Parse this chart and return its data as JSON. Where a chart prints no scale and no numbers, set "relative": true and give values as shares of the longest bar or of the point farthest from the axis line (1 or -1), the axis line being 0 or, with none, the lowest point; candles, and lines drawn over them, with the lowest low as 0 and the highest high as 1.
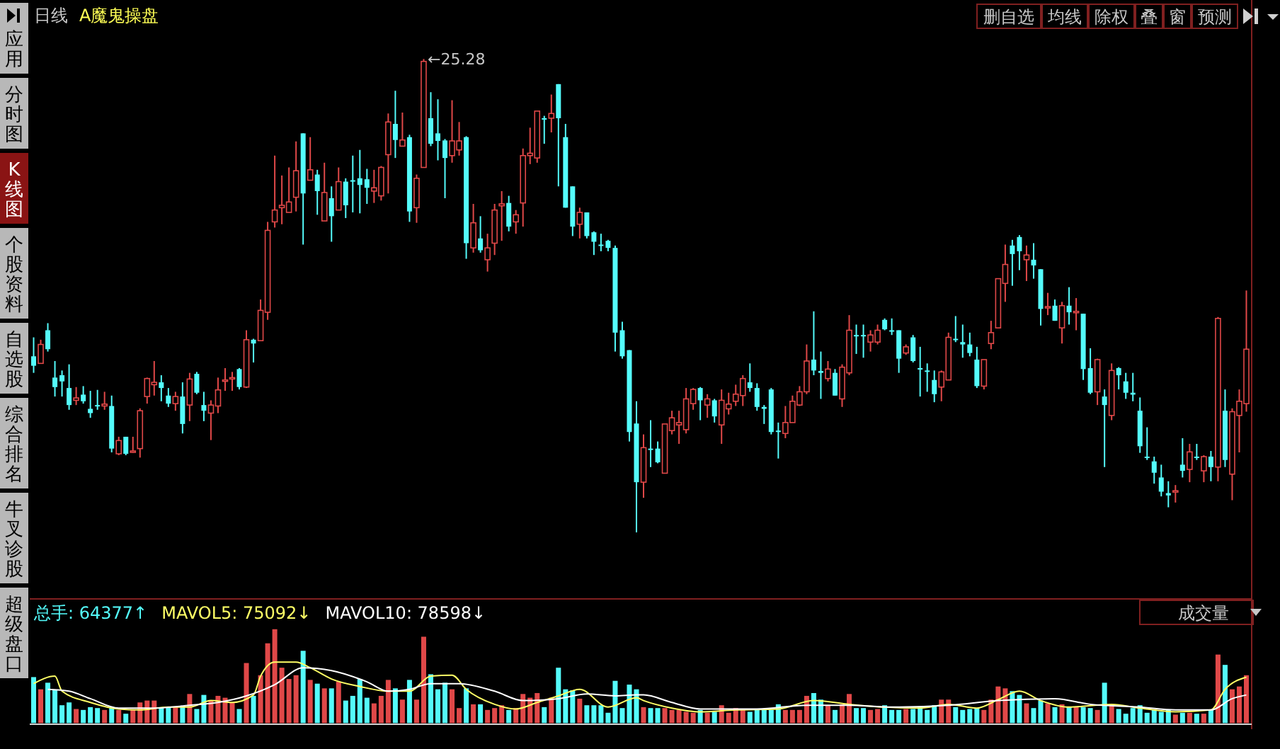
{
  "chart_data": [
    {
      "type": "candlestick",
      "title": "日线",
      "subtitle": "A魔鬼操盘",
      "relative": true,
      "categories": [
        null,
        null,
        null,
        null,
        null,
        null,
        null,
        null,
        null,
        null,
        null,
        null,
        null,
        null,
        null,
        null,
        null,
        null,
        null,
        null,
        null,
        null,
        null,
        null,
        null,
        null,
        null,
        null,
        null,
        null,
        null,
        null,
        null,
        null,
        null,
        null,
        null,
        null,
        null,
        null,
        null,
        null,
        null,
        null,
        null,
        null,
        null,
        null,
        null,
        null,
        null,
        null,
        null,
        null,
        null,
        null,
        null,
        null,
        null,
        null,
        null,
        null,
        null,
        null,
        null,
        null,
        null,
        null,
        null,
        null,
        null,
        null,
        null,
        null,
        null,
        null,
        null,
        null,
        null,
        null,
        null,
        null,
        null,
        null,
        null,
        null,
        null,
        null,
        null,
        null,
        null,
        null,
        null,
        null,
        null,
        null,
        null,
        null,
        null,
        null,
        null,
        null,
        null,
        null,
        null,
        null,
        null,
        null,
        null,
        null,
        null,
        null,
        null,
        null,
        null,
        null,
        null,
        null,
        null,
        null,
        null,
        null,
        null,
        null,
        null,
        null,
        null,
        null,
        null,
        null,
        null,
        null,
        null,
        null,
        null,
        null,
        null,
        null,
        null,
        null,
        null,
        null,
        null,
        null,
        null,
        null,
        null,
        null,
        null,
        null,
        null,
        null,
        null,
        null,
        null,
        null,
        null,
        null,
        null,
        null,
        null,
        null,
        null,
        null,
        null,
        null,
        null,
        null,
        null,
        null,
        null,
        null
      ],
      "colors": [
        "#54fcfc",
        "#e04848",
        "#54fcfc",
        "#54fcfc",
        "#54fcfc",
        "#54fcfc",
        "#e04848",
        "#54fcfc",
        "#54fcfc",
        "#54fcfc",
        "#e04848",
        "#54fcfc",
        "#e04848",
        "#54fcfc",
        "#e04848",
        "#e04848",
        "#e04848",
        "#e04848",
        "#54fcfc",
        "#54fcfc",
        "#e04848",
        "#54fcfc",
        "#e04848",
        "#54fcfc",
        "#54fcfc",
        "#e04848",
        "#e04848",
        "#e04848",
        "#e04848",
        "#54fcfc",
        "#e04848",
        "#54fcfc",
        "#e04848",
        "#e04848",
        "#e04848",
        "#e04848",
        "#e04848",
        "#e04848",
        "#54fcfc",
        "#e04848",
        "#54fcfc",
        "#e04848",
        "#54fcfc",
        "#e04848",
        "#54fcfc",
        "#54fcfc",
        "#54fcfc",
        "#54fcfc",
        "#e04848",
        "#e04848",
        "#e04848",
        "#54fcfc",
        "#e04848",
        "#54fcfc",
        "#e04848",
        "#e04848",
        "#54fcfc",
        "#54fcfc",
        "#54fcfc",
        "#e04848",
        "#e04848",
        "#54fcfc",
        "#e04848",
        "#54fcfc",
        "#e04848",
        "#e04848",
        "#e04848",
        "#54fcfc",
        "#e04848",
        "#e04848",
        "#e04848",
        "#e04848",
        "#54fcfc",
        "#e04848",
        "#54fcfc",
        "#54fcfc",
        "#54fcfc",
        "#e04848",
        "#54fcfc",
        "#54fcfc",
        "#54fcfc",
        "#54fcfc",
        "#54fcfc",
        "#54fcfc",
        "#54fcfc",
        "#54fcfc",
        "#e04848",
        "#54fcfc",
        "#54fcfc",
        "#e04848",
        "#e04848",
        "#e04848",
        "#e04848",
        "#e04848",
        "#54fcfc",
        "#e04848",
        "#54fcfc",
        "#e04848",
        "#e04848",
        "#e04848",
        "#e04848",
        "#54fcfc",
        "#54fcfc",
        "#54fcfc",
        "#54fcfc",
        "#54fcfc",
        "#e04848",
        "#e04848",
        "#e04848",
        "#e04848",
        "#54fcfc",
        "#54fcfc",
        "#e04848",
        "#54fcfc",
        "#e04848",
        "#e04848",
        "#54fcfc",
        "#54fcfc",
        "#e04848",
        "#e04848",
        "#54fcfc",
        "#54fcfc",
        "#54fcfc",
        "#e04848",
        "#54fcfc",
        "#54fcfc",
        "#54fcfc",
        "#54fcfc",
        "#e04848",
        "#e04848",
        "#54fcfc",
        "#54fcfc",
        "#54fcfc",
        "#54fcfc",
        "#e04848",
        "#e04848",
        "#e04848",
        "#e04848",
        "#54fcfc",
        "#54fcfc",
        "#e04848",
        "#54fcfc",
        "#54fcfc",
        "#e04848",
        "#54fcfc",
        "#e04848",
        "#54fcfc",
        "#e04848",
        "#54fcfc",
        "#54fcfc",
        "#e04848",
        "#54fcfc",
        "#e04848",
        "#54fcfc",
        "#54fcfc",
        "#54fcfc",
        "#54fcfc",
        "#54fcfc",
        "#54fcfc",
        "#54fcfc",
        "#54fcfc",
        "#e04848",
        "#54fcfc",
        "#e04848",
        "#54fcfc",
        "#e04848",
        "#54fcfc",
        "#e04848",
        "#54fcfc",
        "#e04848",
        "#e04848",
        "#e04848"
      ],
      "ohlc": [
        [
          0.372,
          0.412,
          0.337,
          0.352
        ],
        [
          0.357,
          0.407,
          0.357,
          0.397
        ],
        [
          0.427,
          0.442,
          0.382,
          0.387
        ],
        [
          0.327,
          0.362,
          0.287,
          0.307
        ],
        [
          0.332,
          0.342,
          0.287,
          0.319
        ],
        [
          0.305,
          0.355,
          0.259,
          0.269
        ],
        [
          0.279,
          0.307,
          0.269,
          0.284
        ],
        [
          0.291,
          0.309,
          0.272,
          0.277
        ],
        [
          0.261,
          0.299,
          0.242,
          0.252
        ],
        [
          0.269,
          0.301,
          0.259,
          0.267
        ],
        [
          0.267,
          0.297,
          0.259,
          0.271
        ],
        [
          0.267,
          0.289,
          0.169,
          0.177
        ],
        [
          0.166,
          0.202,
          0.163,
          0.194
        ],
        [
          0.202,
          0.202,
          0.163,
          0.166
        ],
        [
          0.169,
          0.202,
          0.168,
          0.172
        ],
        [
          0.177,
          0.262,
          0.158,
          0.257
        ],
        [
          0.287,
          0.327,
          0.272,
          0.325
        ],
        [
          0.312,
          0.362,
          0.289,
          0.317
        ],
        [
          0.317,
          0.332,
          0.277,
          0.305
        ],
        [
          0.289,
          0.305,
          0.265,
          0.272
        ],
        [
          0.272,
          0.297,
          0.257,
          0.287
        ],
        [
          0.287,
          0.317,
          0.209,
          0.229
        ],
        [
          0.269,
          0.337,
          0.235,
          0.324
        ],
        [
          0.335,
          0.339,
          0.292,
          0.295
        ],
        [
          0.269,
          0.297,
          0.235,
          0.257
        ],
        [
          0.252,
          0.279,
          0.195,
          0.269
        ],
        [
          0.267,
          0.327,
          0.252,
          0.301
        ],
        [
          0.319,
          0.347,
          0.299,
          0.322
        ],
        [
          0.324,
          0.339,
          0.299,
          0.327
        ],
        [
          0.345,
          0.347,
          0.302,
          0.307
        ],
        [
          0.307,
          0.427,
          0.305,
          0.407
        ],
        [
          0.407,
          0.409,
          0.359,
          0.399
        ],
        [
          0.405,
          0.492,
          0.405,
          0.469
        ],
        [
          0.465,
          0.656,
          0.449,
          0.638
        ],
        [
          0.656,
          0.796,
          0.644,
          0.681
        ],
        [
          0.686,
          0.754,
          0.651,
          0.691
        ],
        [
          0.676,
          0.771,
          0.676,
          0.698
        ],
        [
          0.708,
          0.826,
          0.678,
          0.764
        ],
        [
          0.843,
          0.843,
          0.608,
          0.716
        ],
        [
          0.744,
          0.835,
          0.744,
          0.766
        ],
        [
          0.756,
          0.766,
          0.671,
          0.721
        ],
        [
          0.658,
          0.781,
          0.658,
          0.718
        ],
        [
          0.706,
          0.731,
          0.614,
          0.668
        ],
        [
          0.681,
          0.771,
          0.681,
          0.741
        ],
        [
          0.741,
          0.748,
          0.664,
          0.691
        ],
        [
          0.744,
          0.796,
          0.676,
          0.742
        ],
        [
          0.748,
          0.808,
          0.674,
          0.734
        ],
        [
          0.746,
          0.768,
          0.694,
          0.728
        ],
        [
          0.721,
          0.766,
          0.696,
          0.728
        ],
        [
          0.711,
          0.774,
          0.701,
          0.771
        ],
        [
          0.798,
          0.885,
          0.716,
          0.867
        ],
        [
          0.863,
          0.933,
          0.791,
          0.829
        ],
        [
          0.816,
          0.887,
          0.816,
          0.829
        ],
        [
          0.835,
          0.84,
          0.656,
          0.678
        ],
        [
          0.686,
          0.756,
          0.654,
          0.748
        ],
        [
          0.771,
          1,
          0.771,
          0.995
        ],
        [
          0.875,
          0.93,
          0.816,
          0.821
        ],
        [
          0.843,
          0.915,
          0.786,
          0.827
        ],
        [
          0.828,
          0.831,
          0.706,
          0.791
        ],
        [
          0.796,
          0.913,
          0.781,
          0.827
        ],
        [
          0.808,
          0.867,
          0.796,
          0.827
        ],
        [
          0.835,
          0.837,
          0.578,
          0.611
        ],
        [
          0.601,
          0.694,
          0.591,
          0.654
        ],
        [
          0.621,
          0.668,
          0.591,
          0.596
        ],
        [
          0.576,
          0.631,
          0.551,
          0.601
        ],
        [
          0.611,
          0.694,
          0.586,
          0.681
        ],
        [
          0.69,
          0.721,
          0.616,
          0.694
        ],
        [
          0.696,
          0.711,
          0.636,
          0.646
        ],
        [
          0.656,
          0.681,
          0.631,
          0.671
        ],
        [
          0.696,
          0.811,
          0.646,
          0.796
        ],
        [
          0.796,
          0.855,
          0.778,
          0.801
        ],
        [
          0.791,
          0.89,
          0.781,
          0.89
        ],
        [
          0.875,
          0.88,
          0.821,
          0.873
        ],
        [
          0.875,
          0.925,
          0.845,
          0.885
        ],
        [
          0.947,
          0.947,
          0.731,
          0.875
        ],
        [
          0.835,
          0.863,
          0.686,
          0.686
        ],
        [
          0.731,
          0.731,
          0.626,
          0.646
        ],
        [
          0.651,
          0.686,
          0.621,
          0.676
        ],
        [
          0.676,
          0.676,
          0.621,
          0.626
        ],
        [
          0.634,
          0.636,
          0.586,
          0.614
        ],
        [
          0.608,
          0.631,
          0.594,
          0.606
        ],
        [
          0.616,
          0.618,
          0.594,
          0.601
        ],
        [
          0.601,
          0.606,
          0.382,
          0.422
        ],
        [
          0.427,
          0.445,
          0.367,
          0.372
        ],
        [
          0.385,
          0.385,
          0.192,
          0.212
        ],
        [
          0.23,
          0.277,
          0,
          0.106
        ],
        [
          0.106,
          0.207,
          0.073,
          0.179
        ],
        [
          0.177,
          0.237,
          0.138,
          0.175
        ],
        [
          0.177,
          0.192,
          0.146,
          0.148
        ],
        [
          0.125,
          0.229,
          0.125,
          0.229
        ],
        [
          0.215,
          0.257,
          0.207,
          0.242
        ],
        [
          0.227,
          0.257,
          0.187,
          0.232
        ],
        [
          0.217,
          0.305,
          0.209,
          0.282
        ],
        [
          0.272,
          0.305,
          0.259,
          0.302
        ],
        [
          0.305,
          0.307,
          0.237,
          0.279
        ],
        [
          0.269,
          0.292,
          0.242,
          0.282
        ],
        [
          0.279,
          0.282,
          0.232,
          0.245
        ],
        [
          0.227,
          0.302,
          0.187,
          0.279
        ],
        [
          0.261,
          0.295,
          0.249,
          0.271
        ],
        [
          0.277,
          0.312,
          0.267,
          0.292
        ],
        [
          0.289,
          0.332,
          0.267,
          0.325
        ],
        [
          0.317,
          0.357,
          0.297,
          0.305
        ],
        [
          0.305,
          0.315,
          0.257,
          0.265
        ],
        [
          0.265,
          0.269,
          0.229,
          0.261
        ],
        [
          0.302,
          0.305,
          0.207,
          0.212
        ],
        [
          0.215,
          0.232,
          0.156,
          0.212
        ],
        [
          0.209,
          0.267,
          0.199,
          0.232
        ],
        [
          0.232,
          0.289,
          0.232,
          0.277
        ],
        [
          0.269,
          0.309,
          0.267,
          0.297
        ],
        [
          0.297,
          0.397,
          0.292,
          0.362
        ],
        [
          0.365,
          0.467,
          0.332,
          0.342
        ],
        [
          0.341,
          0.382,
          0.282,
          0.337
        ],
        [
          0.325,
          0.362,
          0.319,
          0.345
        ],
        [
          0.337,
          0.345,
          0.289,
          0.289
        ],
        [
          0.282,
          0.355,
          0.265,
          0.349
        ],
        [
          0.337,
          0.459,
          0.332,
          0.427
        ],
        [
          0.417,
          0.439,
          0.377,
          0.415
        ],
        [
          0.417,
          0.439,
          0.369,
          0.415
        ],
        [
          0.402,
          0.427,
          0.382,
          0.417
        ],
        [
          0.402,
          0.439,
          0.397,
          0.427
        ],
        [
          0.449,
          0.452,
          0.427,
          0.429
        ],
        [
          0.427,
          0.452,
          0.417,
          0.424
        ],
        [
          0.427,
          0.427,
          0.337,
          0.367
        ],
        [
          0.379,
          0.397,
          0.375,
          0.392
        ],
        [
          0.412,
          0.417,
          0.359,
          0.362
        ],
        [
          0.347,
          0.392,
          0.287,
          0.344
        ],
        [
          0.342,
          0.357,
          0.297,
          0.339
        ],
        [
          0.322,
          0.342,
          0.275,
          0.292
        ],
        [
          0.307,
          0.342,
          0.277,
          0.339
        ],
        [
          0.322,
          0.422,
          0.322,
          0.412
        ],
        [
          0.409,
          0.457,
          0.402,
          0.407
        ],
        [
          0.402,
          0.439,
          0.369,
          0.397
        ],
        [
          0.397,
          0.422,
          0.372,
          0.379
        ],
        [
          0.365,
          0.392,
          0.305,
          0.309
        ],
        [
          0.309,
          0.365,
          0.302,
          0.365
        ],
        [
          0.399,
          0.447,
          0.387,
          0.422
        ],
        [
          0.432,
          0.536,
          0.432,
          0.536
        ],
        [
          0.526,
          0.608,
          0.487,
          0.566
        ],
        [
          0.606,
          0.618,
          0.521,
          0.588
        ],
        [
          0.624,
          0.628,
          0.554,
          0.594
        ],
        [
          0.576,
          0.606,
          0.531,
          0.586
        ],
        [
          0.576,
          0.611,
          0.536,
          0.564
        ],
        [
          0.556,
          0.556,
          0.437,
          0.472
        ],
        [
          0.475,
          0.506,
          0.459,
          0.477
        ],
        [
          0.479,
          0.492,
          0.447,
          0.447
        ],
        [
          0.432,
          0.487,
          0.399,
          0.479
        ],
        [
          0.479,
          0.518,
          0.439,
          0.465
        ],
        [
          0.465,
          0.495,
          0.427,
          0.467
        ],
        [
          0.462,
          0.462,
          0.322,
          0.345
        ],
        [
          0.347,
          0.389,
          0.292,
          0.295
        ],
        [
          0.297,
          0.367,
          0.269,
          0.365
        ],
        [
          0.287,
          0.302,
          0.138,
          0.269
        ],
        [
          0.247,
          0.357,
          0.237,
          0.342
        ],
        [
          0.347,
          0.349,
          0.302,
          0.332
        ],
        [
          0.319,
          0.337,
          0.282,
          0.295
        ],
        [
          0.295,
          0.337,
          0.277,
          0.291
        ],
        [
          0.257,
          0.285,
          0.168,
          0.182
        ],
        [
          0.16,
          0.222,
          0.153,
          0.158
        ],
        [
          0.15,
          0.16,
          0.103,
          0.126
        ],
        [
          0.116,
          0.143,
          0.076,
          0.086
        ],
        [
          0.083,
          0.108,
          0.053,
          0.078
        ],
        [
          0.086,
          0.1,
          0.063,
          0.088
        ],
        [
          0.143,
          0.199,
          0.116,
          0.13
        ],
        [
          0.133,
          0.187,
          0.106,
          0.17
        ],
        [
          0.16,
          0.187,
          0.153,
          0.158
        ],
        [
          0.13,
          0.163,
          0.106,
          0.16
        ],
        [
          0.16,
          0.172,
          0.108,
          0.138
        ],
        [
          0.138,
          0.455,
          0.108,
          0.452
        ],
        [
          0.257,
          0.302,
          0.138,
          0.153
        ],
        [
          0.123,
          0.262,
          0.068,
          0.255
        ],
        [
          0.247,
          0.302,
          0.169,
          0.277
        ],
        [
          0.272,
          0.511,
          0.255,
          0.387
        ]
      ],
      "annotations": [
        "←25.28"
      ]
    },
    {
      "type": "bar",
      "relative": true,
      "legend": "top left",
      "categories": [
        null,
        null,
        null,
        null,
        null,
        null,
        null,
        null,
        null,
        null,
        null,
        null,
        null,
        null,
        null,
        null,
        null,
        null,
        null,
        null,
        null,
        null,
        null,
        null,
        null,
        null,
        null,
        null,
        null,
        null,
        null,
        null,
        null,
        null,
        null,
        null,
        null,
        null,
        null,
        null,
        null,
        null,
        null,
        null,
        null,
        null,
        null,
        null,
        null,
        null,
        null,
        null,
        null,
        null,
        null,
        null,
        null,
        null,
        null,
        null,
        null,
        null,
        null,
        null,
        null,
        null,
        null,
        null,
        null,
        null,
        null,
        null,
        null,
        null,
        null,
        null,
        null,
        null,
        null,
        null,
        null,
        null,
        null,
        null,
        null,
        null,
        null,
        null,
        null,
        null,
        null,
        null,
        null,
        null,
        null,
        null,
        null,
        null,
        null,
        null,
        null,
        null,
        null,
        null,
        null,
        null,
        null,
        null,
        null,
        null,
        null,
        null,
        null,
        null,
        null,
        null,
        null,
        null,
        null,
        null,
        null,
        null,
        null,
        null,
        null,
        null,
        null,
        null,
        null,
        null,
        null,
        null,
        null,
        null,
        null,
        null,
        null,
        null,
        null,
        null,
        null,
        null,
        null,
        null,
        null,
        null,
        null,
        null,
        null,
        null,
        null,
        null,
        null,
        null,
        null,
        null,
        null,
        null,
        null,
        null,
        null,
        null,
        null,
        null,
        null,
        null,
        null,
        null,
        null,
        null,
        null,
        null
      ],
      "series": [
        {
          "name": "总手: 64377↑",
          "color": "#54fcfc",
          "colors": [
            "#54fcfc",
            "#e04848",
            "#54fcfc",
            "#54fcfc",
            "#54fcfc",
            "#54fcfc",
            "#e04848",
            "#54fcfc",
            "#54fcfc",
            "#54fcfc",
            "#e04848",
            "#54fcfc",
            "#e04848",
            "#54fcfc",
            "#e04848",
            "#e04848",
            "#e04848",
            "#e04848",
            "#54fcfc",
            "#54fcfc",
            "#e04848",
            "#54fcfc",
            "#e04848",
            "#54fcfc",
            "#54fcfc",
            "#e04848",
            "#e04848",
            "#e04848",
            "#e04848",
            "#54fcfc",
            "#e04848",
            "#54fcfc",
            "#e04848",
            "#e04848",
            "#e04848",
            "#e04848",
            "#e04848",
            "#e04848",
            "#54fcfc",
            "#e04848",
            "#54fcfc",
            "#e04848",
            "#54fcfc",
            "#e04848",
            "#54fcfc",
            "#54fcfc",
            "#54fcfc",
            "#54fcfc",
            "#e04848",
            "#e04848",
            "#e04848",
            "#54fcfc",
            "#e04848",
            "#54fcfc",
            "#e04848",
            "#e04848",
            "#54fcfc",
            "#54fcfc",
            "#54fcfc",
            "#e04848",
            "#e04848",
            "#54fcfc",
            "#e04848",
            "#54fcfc",
            "#e04848",
            "#e04848",
            "#e04848",
            "#54fcfc",
            "#e04848",
            "#e04848",
            "#e04848",
            "#e04848",
            "#54fcfc",
            "#e04848",
            "#54fcfc",
            "#54fcfc",
            "#54fcfc",
            "#e04848",
            "#54fcfc",
            "#54fcfc",
            "#54fcfc",
            "#54fcfc",
            "#54fcfc",
            "#54fcfc",
            "#54fcfc",
            "#54fcfc",
            "#e04848",
            "#54fcfc",
            "#54fcfc",
            "#e04848",
            "#e04848",
            "#e04848",
            "#e04848",
            "#e04848",
            "#54fcfc",
            "#e04848",
            "#54fcfc",
            "#e04848",
            "#e04848",
            "#e04848",
            "#e04848",
            "#54fcfc",
            "#54fcfc",
            "#54fcfc",
            "#54fcfc",
            "#54fcfc",
            "#e04848",
            "#e04848",
            "#e04848",
            "#e04848",
            "#54fcfc",
            "#54fcfc",
            "#e04848",
            "#54fcfc",
            "#e04848",
            "#e04848",
            "#54fcfc",
            "#54fcfc",
            "#e04848",
            "#e04848",
            "#54fcfc",
            "#54fcfc",
            "#54fcfc",
            "#e04848",
            "#54fcfc",
            "#54fcfc",
            "#54fcfc",
            "#54fcfc",
            "#e04848",
            "#e04848",
            "#54fcfc",
            "#54fcfc",
            "#54fcfc",
            "#54fcfc",
            "#e04848",
            "#e04848",
            "#e04848",
            "#e04848",
            "#54fcfc",
            "#54fcfc",
            "#e04848",
            "#54fcfc",
            "#54fcfc",
            "#e04848",
            "#54fcfc",
            "#e04848",
            "#54fcfc",
            "#e04848",
            "#54fcfc",
            "#54fcfc",
            "#e04848",
            "#54fcfc",
            "#e04848",
            "#54fcfc",
            "#54fcfc",
            "#54fcfc",
            "#54fcfc",
            "#54fcfc",
            "#54fcfc",
            "#54fcfc",
            "#54fcfc",
            "#e04848",
            "#54fcfc",
            "#e04848",
            "#54fcfc",
            "#e04848",
            "#54fcfc",
            "#e04848",
            "#54fcfc",
            "#e04848",
            "#e04848",
            "#e04848"
          ],
          "values": [
            0.49,
            0.36,
            0.43,
            0.35,
            0.19,
            0.22,
            0.15,
            0.14,
            0.17,
            0.16,
            0.14,
            0.16,
            0.14,
            0.1,
            0.14,
            0.22,
            0.24,
            0.24,
            0.17,
            0.17,
            0.17,
            0.17,
            0.31,
            0.15,
            0.3,
            0.24,
            0.29,
            0.27,
            0.22,
            0.15,
            0.64,
            0.29,
            0.51,
            0.85,
            1,
            0.59,
            0.47,
            0.51,
            0.77,
            0.46,
            0.42,
            0.37,
            0.37,
            0.44,
            0.24,
            0.29,
            0.47,
            0.27,
            0.21,
            0.29,
            0.46,
            0.37,
            0.25,
            0.46,
            0.25,
            0.92,
            0.52,
            0.36,
            0.43,
            0.36,
            0.16,
            0.37,
            0.2,
            0.2,
            0.14,
            0.16,
            0.19,
            0.14,
            0.16,
            0.31,
            0.27,
            0.32,
            0.17,
            0.27,
            0.59,
            0.36,
            0.35,
            0.26,
            0.19,
            0.19,
            0.19,
            0.11,
            0.45,
            0.16,
            0.41,
            0.36,
            0.17,
            0.16,
            0.16,
            0.16,
            0.14,
            0.14,
            0.12,
            0.11,
            0.14,
            0.11,
            0.12,
            0.19,
            0.11,
            0.16,
            0.14,
            0.12,
            0.14,
            0.14,
            0.14,
            0.2,
            0.14,
            0.14,
            0.14,
            0.29,
            0.32,
            0.25,
            0.19,
            0.14,
            0.2,
            0.31,
            0.16,
            0.16,
            0.14,
            0.15,
            0.19,
            0.14,
            0.14,
            0.15,
            0.15,
            0.17,
            0.14,
            0.19,
            0.25,
            0.25,
            0.17,
            0.14,
            0.15,
            0.16,
            0.14,
            0.25,
            0.39,
            0.37,
            0.34,
            0.3,
            0.21,
            0.16,
            0.24,
            0.21,
            0.17,
            0.2,
            0.17,
            0.17,
            0.17,
            0.16,
            0.14,
            0.43,
            0.2,
            0.15,
            0.1,
            0.16,
            0.19,
            0.11,
            0.14,
            0.12,
            0.14,
            0.09,
            0.11,
            0.11,
            0.1,
            0.1,
            0.14,
            0.73,
            0.62,
            0.36,
            0.39,
            0.51
          ]
        },
        {
          "type": "line",
          "name": "MAVOL5: 75092↓",
          "color": "#ffff66",
          "values": [
            0.42,
            null,
            null,
            0.5,
            0.34,
            null,
            null,
            null,
            0.22,
            null,
            null,
            null,
            0.15,
            null,
            null,
            0.14,
            null,
            null,
            null,
            0.17,
            null,
            null,
            0.17,
            null,
            null,
            0.24,
            null,
            null,
            0.22,
            null,
            null,
            0.3,
            0.5,
            null,
            0.65,
            null,
            null,
            0.65,
            null,
            0.59,
            null,
            null,
            0.47,
            null,
            null,
            null,
            0.39,
            null,
            null,
            null,
            0.34,
            null,
            null,
            0.34,
            null,
            null,
            0.5,
            null,
            null,
            0.51,
            null,
            0.36,
            null,
            null,
            null,
            0.2,
            null,
            null,
            0.15,
            null,
            null,
            0.22,
            null,
            null,
            0.29,
            null,
            null,
            0.36,
            null,
            null,
            null,
            0.17,
            null,
            null,
            null,
            0.27,
            0.24,
            null,
            null,
            null,
            0.16,
            null,
            null,
            null,
            0.12,
            null,
            null,
            null,
            null,
            0.14,
            null,
            null,
            null,
            null,
            null,
            0.15,
            null,
            null,
            null,
            null,
            0.24,
            null,
            null,
            null,
            null,
            0.2,
            null,
            null,
            null,
            null,
            0.17,
            null,
            null,
            null,
            null,
            0.16,
            null,
            null,
            null,
            0.2,
            null,
            null,
            null,
            0.16,
            null,
            null,
            0.25,
            null,
            null,
            0.34,
            null,
            null,
            0.24,
            null,
            null,
            null,
            0.17,
            null,
            null,
            null,
            null,
            null,
            0.2,
            null,
            null,
            null,
            0.16,
            null,
            null,
            null,
            null,
            0.12,
            null,
            null,
            null,
            null,
            0.14,
            null,
            0.36,
            null,
            null,
            0.49
          ]
        },
        {
          "type": "line",
          "name": "MAVOL10: 78598↓",
          "color": "#ffffff",
          "values": [
            null,
            null,
            0.36,
            null,
            null,
            0.34,
            null,
            null,
            0.26,
            null,
            null,
            null,
            0.16,
            null,
            null,
            null,
            null,
            0.16,
            null,
            null,
            null,
            null,
            0.19,
            null,
            null,
            null,
            0.22,
            null,
            null,
            null,
            0.29,
            null,
            null,
            null,
            0.41,
            null,
            null,
            null,
            0.59,
            null,
            null,
            null,
            0.56,
            null,
            null,
            null,
            null,
            0.44,
            null,
            null,
            0.34,
            null,
            null,
            0.36,
            null,
            null,
            0.42,
            null,
            null,
            null,
            0.42,
            null,
            null,
            null,
            null,
            0.34,
            null,
            null,
            null,
            0.24,
            null,
            null,
            null,
            null,
            0.26,
            null,
            null,
            null,
            0.31,
            null,
            null,
            null,
            0.29,
            null,
            null,
            0.3,
            0.3,
            null,
            null,
            null,
            0.22,
            null,
            null,
            null,
            0.15,
            null,
            null,
            null,
            null,
            null,
            null,
            null,
            0.15,
            null,
            null,
            null,
            null,
            null,
            null,
            0.19,
            null,
            null,
            null,
            null,
            null,
            0.19,
            null,
            null,
            null,
            null,
            null,
            0.17,
            null,
            null,
            null,
            null,
            null,
            null,
            null,
            0.19,
            null,
            null,
            null,
            null,
            null,
            null,
            0.24,
            null,
            null,
            null,
            null,
            null,
            null,
            null,
            0.26,
            null,
            null,
            null,
            null,
            0.2,
            null,
            null,
            null,
            null,
            null,
            null,
            0.17,
            null,
            null,
            null,
            null,
            0.14,
            null,
            null,
            null,
            null,
            0.14,
            null,
            null,
            0.26,
            null,
            0.3
          ]
        }
      ],
      "annotations": [
        "成交量"
      ]
    },
    {
      "type": "other",
      "annotations": [
        "应用",
        "分时图",
        "K线图",
        "个股资料",
        "自选股",
        "综合排名",
        "牛叉诊股",
        "超级盘口"
      ]
    },
    {
      "type": "other",
      "annotations": [
        "删自选",
        "均线",
        "除权",
        "叠",
        "窗",
        "预测"
      ]
    }
  ]
}
